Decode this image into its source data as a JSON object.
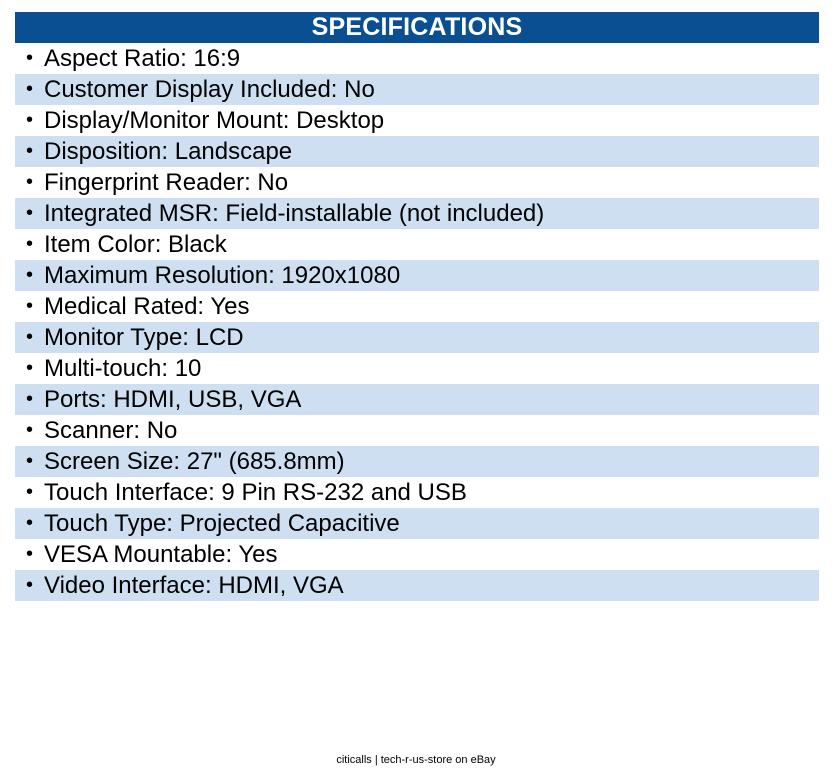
{
  "header": {
    "title": "SPECIFICATIONS"
  },
  "colors": {
    "header_bg": "#0b4f93",
    "header_text": "#ffffff",
    "stripe": "#cddff1",
    "row_bg": "#ffffff"
  },
  "bullet_symbol": "•",
  "specs": [
    "Aspect Ratio: 16:9",
    "Customer Display Included: No",
    "Display/Monitor Mount: Desktop",
    "Disposition: Landscape",
    "Fingerprint Reader: No",
    "Integrated MSR: Field-installable (not included)",
    "Item Color: Black",
    "Maximum Resolution: 1920x1080",
    "Medical Rated: Yes",
    "Monitor Type: LCD",
    "Multi-touch: 10",
    "Ports: HDMI, USB, VGA",
    "Scanner: No",
    "Screen Size: 27\" (685.8mm)",
    "Touch Interface: 9 Pin RS-232 and USB",
    "Touch Type: Projected Capacitive",
    "VESA Mountable: Yes",
    "Video Interface: HDMI, VGA"
  ],
  "footer": {
    "text": "citicalls | tech-r-us-store on eBay"
  }
}
